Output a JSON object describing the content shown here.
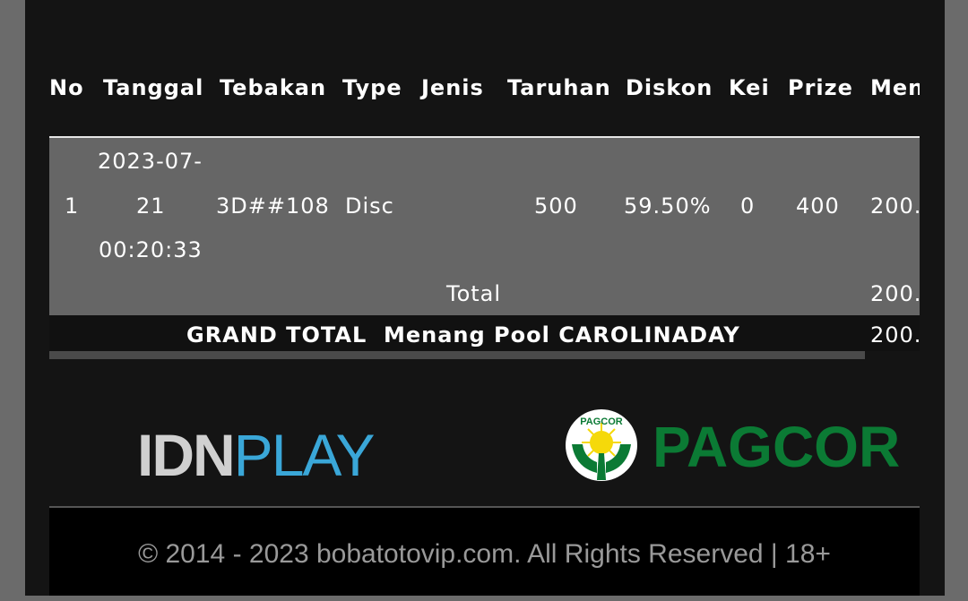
{
  "table": {
    "headers": [
      "No",
      "Tanggal",
      "Tebakan",
      "Type",
      "Jenis",
      "Taruhan",
      "Diskon",
      "Kei",
      "Prize",
      "Men"
    ],
    "row": {
      "no": "1",
      "date_line1": "2023-07-",
      "date_line2": "21",
      "date_line3": "00:20:33",
      "tebakan": "3D##108",
      "type": "Disc",
      "jenis": "",
      "taruhan": "500",
      "diskon": "59.50%",
      "kei": "0",
      "prize": "400",
      "menang": "200."
    },
    "total_label": "Total",
    "total_value": "200.",
    "grand_total_label": "GRAND TOTAL  Menang Pool CAROLINADAY",
    "grand_total_value": "200."
  },
  "logos": {
    "idnplay_left": "IDN",
    "idnplay_right": "PLAY",
    "pagcor": "PAGCOR",
    "pagcor_seal": "PAGCOR"
  },
  "footer": {
    "text": "© 2014 - 2023 bobatotovip.com. All Rights Reserved | 18+"
  },
  "colors": {
    "pagcor_green": "#0b7a34",
    "row_bg": "#666666",
    "panel_bg": "#141414"
  }
}
